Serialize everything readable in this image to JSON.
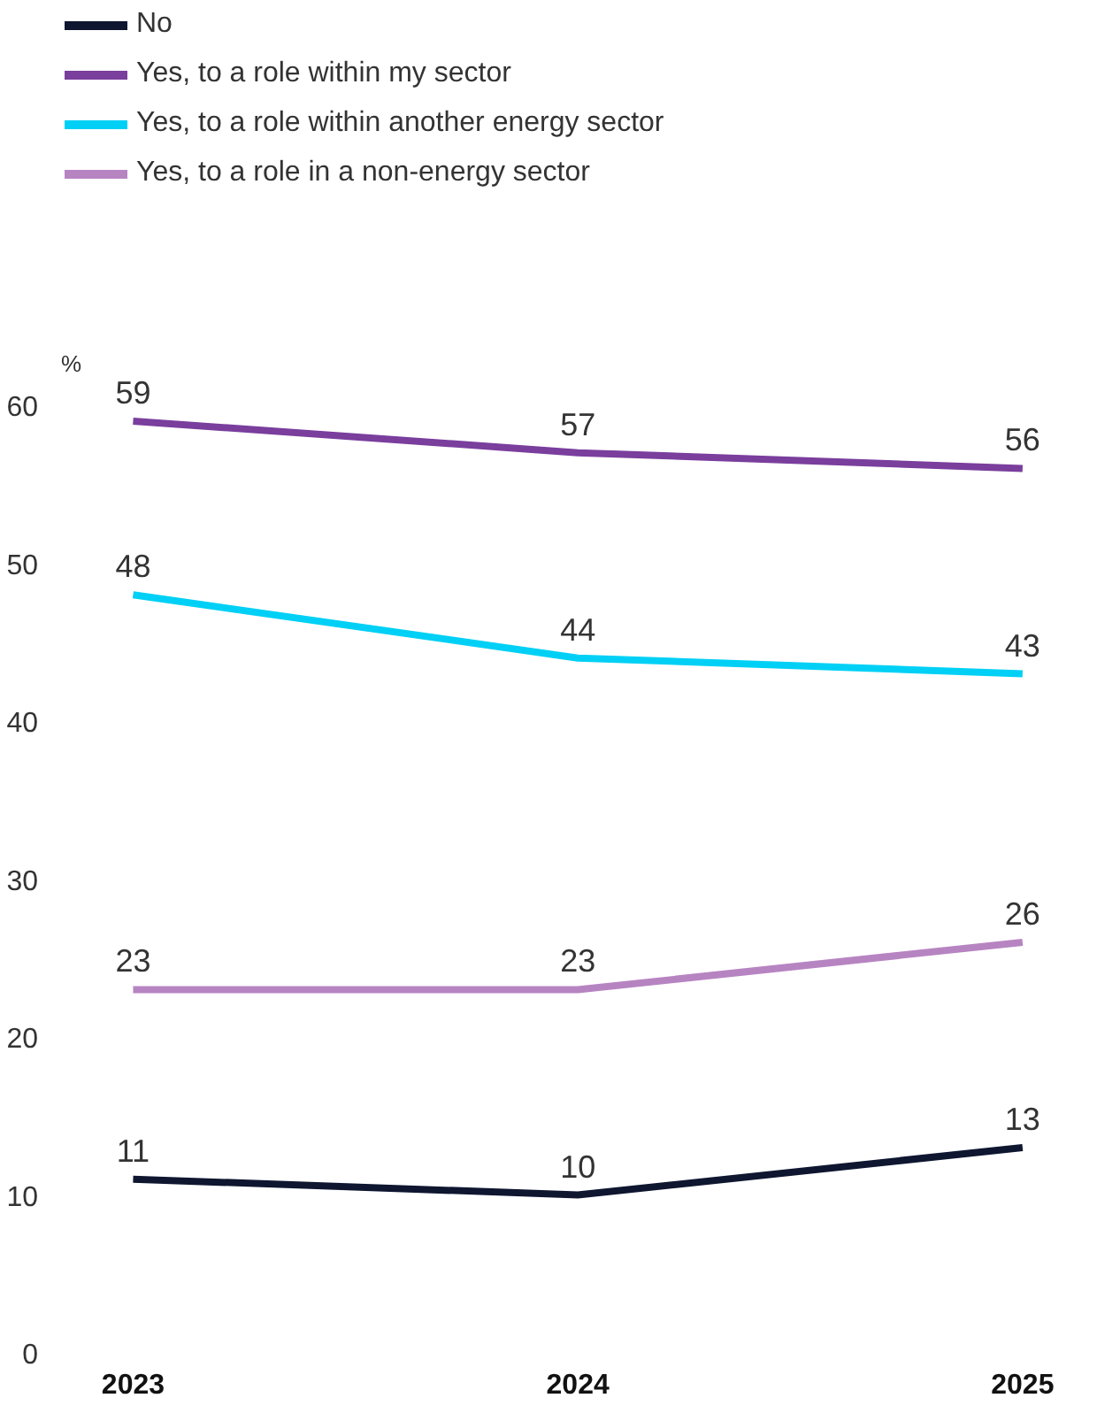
{
  "chart_data": {
    "type": "line",
    "ylabel": "%",
    "categories": [
      "2023",
      "2024",
      "2025"
    ],
    "series": [
      {
        "name": "No",
        "color": "#0e1630",
        "values": [
          11,
          10,
          13
        ]
      },
      {
        "name": "Yes, to a role within my sector",
        "color": "#7a3e9d",
        "values": [
          59,
          57,
          56
        ]
      },
      {
        "name": "Yes, to a role within another energy sector",
        "color": "#00d0f5",
        "values": [
          48,
          44,
          43
        ]
      },
      {
        "name": "Yes, to a role in a non-energy sector",
        "color": "#b784c2",
        "values": [
          23,
          23,
          26
        ]
      }
    ],
    "ylim": [
      0,
      60
    ],
    "yticks": [
      0,
      10,
      20,
      30,
      40,
      50,
      60
    ],
    "grid": false,
    "legend": "top left",
    "data_labels": true,
    "marker": "none",
    "line_style": "solid"
  }
}
